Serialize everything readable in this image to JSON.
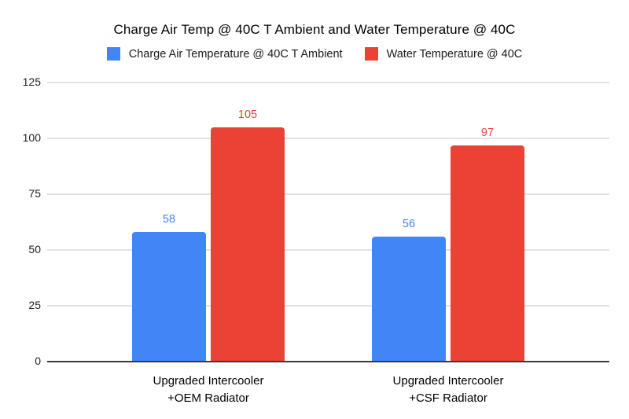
{
  "chart_data": {
    "type": "bar",
    "title": "Charge Air Temp @ 40C T Ambient and Water Temperature @ 40C",
    "categories": [
      "Upgraded Intercooler\n+OEM Radiator",
      "Upgraded Intercooler\n+CSF Radiator"
    ],
    "series": [
      {
        "name": "Charge Air Temperature @ 40C T Ambient",
        "color": "#4285F4",
        "values": [
          58,
          56
        ]
      },
      {
        "name": "Water Temperature @ 40C",
        "color": "#EA4335",
        "values": [
          105,
          97
        ]
      }
    ],
    "xlabel": "",
    "ylabel": "",
    "ylim": [
      0,
      125
    ],
    "yticks": [
      0,
      25,
      50,
      75,
      100,
      125
    ],
    "grid": true,
    "legend_position": "top",
    "background_color": "#ffffff",
    "gridline_color": "#e2e2e2",
    "axis_line_color": "#3b3b3b"
  }
}
